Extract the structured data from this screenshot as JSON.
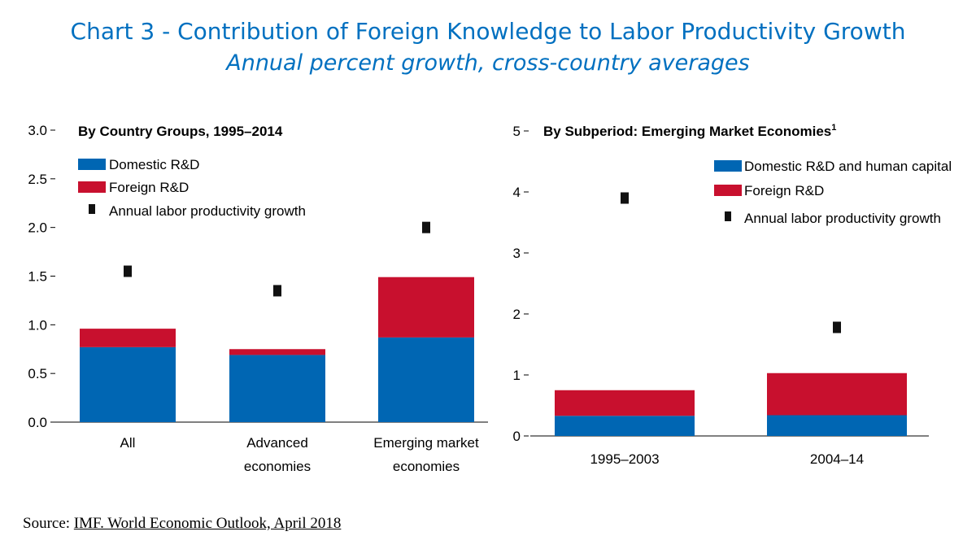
{
  "header": {
    "title": "Chart 3 - Contribution of Foreign Knowledge to Labor Productivity Growth",
    "subtitle": "Annual percent growth, cross-country averages"
  },
  "source": {
    "prefix": "Source: ",
    "link_text": "IMF. World Economic Outlook, April 2018"
  },
  "colors": {
    "domestic": "#0066b3",
    "foreign": "#c8102e",
    "marker": "#111111"
  },
  "chart_data": [
    {
      "type": "bar",
      "stacked": true,
      "title": "By Country Groups, 1995–2014",
      "title_sup": "",
      "categories": [
        [
          "All"
        ],
        [
          "Advanced",
          "economies"
        ],
        [
          "Emerging market",
          "economies"
        ]
      ],
      "yticks": [
        "0.0",
        "0.5",
        "1.0",
        "1.5",
        "2.0",
        "2.5",
        "3.0"
      ],
      "ylim": [
        0,
        3.0
      ],
      "series": [
        {
          "name": "Domestic R&D",
          "kind": "bar",
          "color": "#0066b3",
          "values": [
            0.77,
            0.69,
            0.87
          ]
        },
        {
          "name": "Foreign R&D",
          "kind": "bar",
          "color": "#c8102e",
          "values": [
            0.19,
            0.06,
            0.62
          ]
        },
        {
          "name": "Annual labor productivity growth",
          "kind": "marker",
          "color": "#111111",
          "values": [
            1.55,
            1.35,
            2.0
          ]
        }
      ],
      "legend_position": "top-left",
      "grid": false
    },
    {
      "type": "bar",
      "stacked": true,
      "title": "By Subperiod: Emerging Market Economies",
      "title_sup": "1",
      "categories": [
        [
          "1995–2003"
        ],
        [
          "2004–14"
        ]
      ],
      "yticks": [
        "0",
        "1",
        "2",
        "3",
        "4",
        "5"
      ],
      "ylim": [
        0,
        5
      ],
      "series": [
        {
          "name": "Domestic R&D and human capital",
          "kind": "bar",
          "color": "#0066b3",
          "values": [
            0.33,
            0.34
          ]
        },
        {
          "name": "Foreign R&D",
          "kind": "bar",
          "color": "#c8102e",
          "values": [
            0.42,
            0.69
          ]
        },
        {
          "name": "Annual labor productivity growth",
          "kind": "marker",
          "color": "#111111",
          "values": [
            3.9,
            1.78
          ]
        }
      ],
      "legend_position": "top-right",
      "grid": false
    }
  ]
}
